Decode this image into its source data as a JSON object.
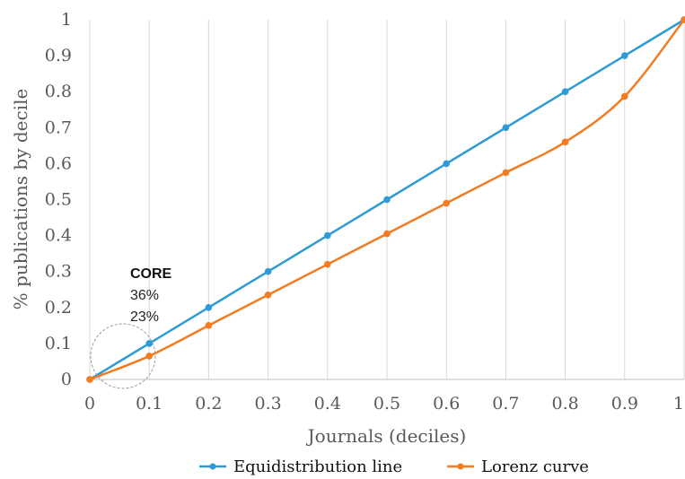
{
  "chart_data": {
    "type": "line",
    "title": "",
    "xlabel": "Journals (deciles)",
    "ylabel": "% publications by decile",
    "xlim": [
      0,
      1
    ],
    "ylim": [
      0,
      1
    ],
    "x_ticks": [
      "0",
      "0.1",
      "0.2",
      "0.3",
      "0.4",
      "0.5",
      "0.6",
      "0.7",
      "0.8",
      "0.9",
      "1"
    ],
    "y_ticks": [
      "0",
      "0.1",
      "0.2",
      "0.3",
      "0.4",
      "0.5",
      "0.6",
      "0.7",
      "0.8",
      "0.9",
      "1"
    ],
    "grid": "vertical",
    "legend_position": "bottom",
    "x": [
      0,
      0.1,
      0.2,
      0.3,
      0.4,
      0.5,
      0.6,
      0.7,
      0.8,
      0.9,
      1.0
    ],
    "series": [
      {
        "name": "Equidistribution line",
        "color": "#2E9BD6",
        "values": [
          0,
          0.1,
          0.2,
          0.3,
          0.4,
          0.5,
          0.6,
          0.7,
          0.8,
          0.9,
          1.0
        ]
      },
      {
        "name": "Lorenz curve",
        "color": "#F47B20",
        "values": [
          0,
          0.065,
          0.15,
          0.235,
          0.32,
          0.405,
          0.49,
          0.575,
          0.66,
          0.787,
          1.0
        ]
      }
    ],
    "annotation": {
      "title": "CORE",
      "lines": [
        "36%",
        "23%"
      ]
    }
  }
}
